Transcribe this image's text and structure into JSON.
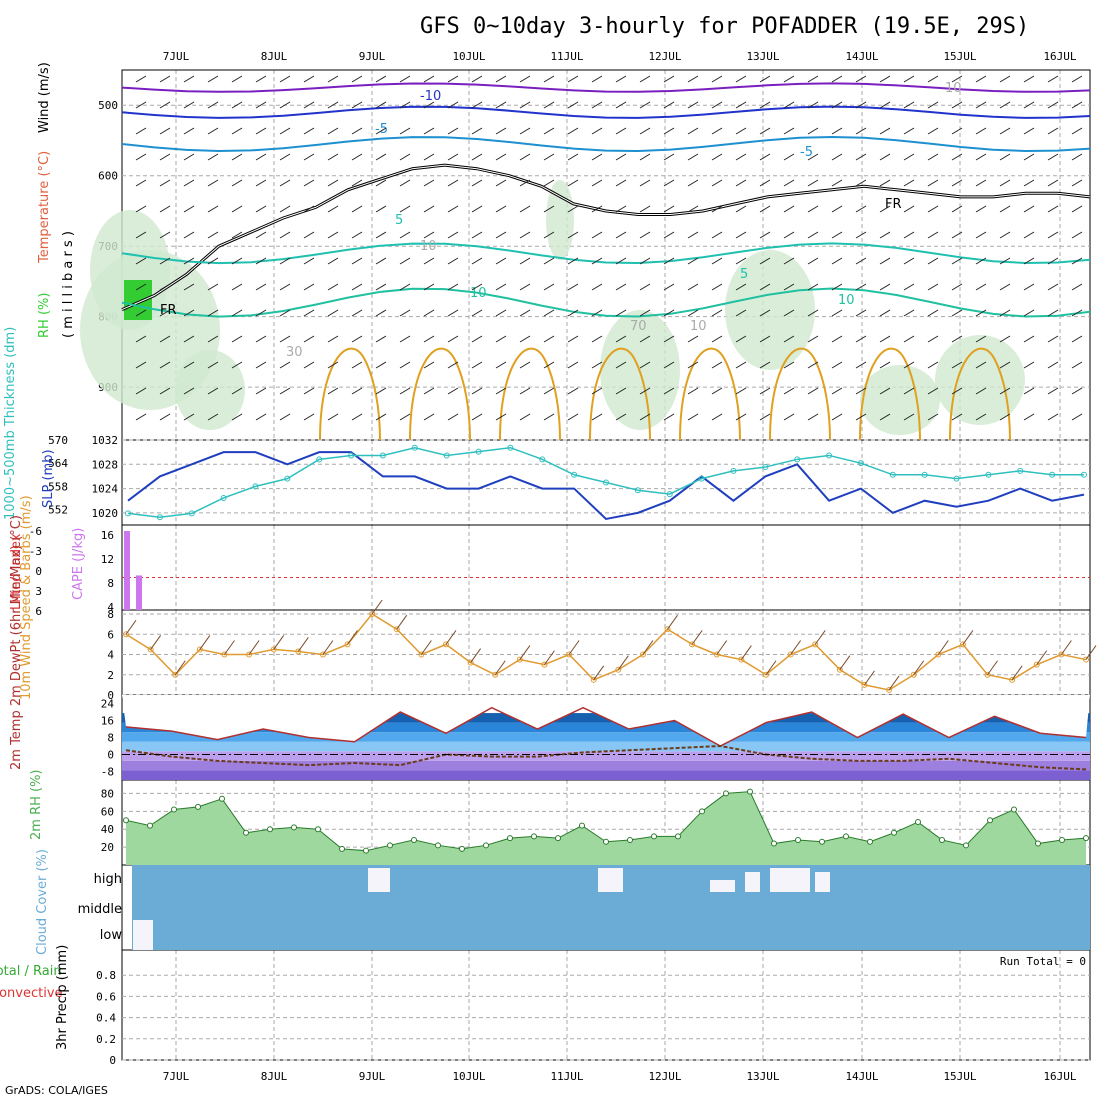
{
  "title": "GFS 0~10day 3-hourly for POFADDER (19.5E, 29S)",
  "footer": "GrADS: COLA/IGES",
  "run_total": "Run Total = 0",
  "colors": {
    "temperature": "#e06040",
    "wind": "#000000",
    "rh_green": "#33cc33",
    "slp": "#1f3fbf",
    "thickness": "#2fbfbf",
    "cape": "#cc77ee",
    "lifted": "#dd3333",
    "wind10m": "#e09a30",
    "rh2m": "#4caf50",
    "cloud": "#6aacd6",
    "precip_total": "#33aa33",
    "precip_conv": "#dd3333"
  },
  "chart_data": [
    {
      "panel": "upper-air",
      "type": "contour",
      "x_ticks": [
        "7JUL",
        "8JUL",
        "9JUL",
        "10JUL",
        "11JUL",
        "12JUL",
        "13JUL",
        "14JUL",
        "15JUL",
        "16JUL"
      ],
      "ylabel_parts": [
        "Wind (m/s)",
        "Temperature (°C)",
        "RH (%)"
      ],
      "ylabel_prefix": "RH (%)",
      "ylabel_temp": "Temperature (°C)",
      "ylabel_wind": "Wind (m/s)",
      "ylabel_pressure": "( m i l l i b a r s )",
      "y_ticks": [
        500,
        600,
        700,
        800,
        900
      ],
      "ylim": [
        450,
        975
      ],
      "contour_labels": [
        "-10",
        "-5",
        "-5",
        "FR",
        "5",
        "5",
        "10",
        "10",
        "FR",
        "10",
        "30",
        "70",
        "10",
        "10"
      ],
      "freezing_level_mb": [
        790,
        770,
        740,
        700,
        680,
        660,
        645,
        620,
        605,
        590,
        585,
        590,
        600,
        615,
        640,
        650,
        655,
        655,
        650,
        640,
        630,
        625,
        620,
        615,
        620,
        625,
        630,
        630,
        625,
        625,
        630
      ]
    },
    {
      "panel": "slp-thickness",
      "type": "line",
      "ylabel_left": "1000~500mb Thickness (dm)",
      "ylabel_right": "SLP (mb)",
      "thickness_ticks": [
        552,
        558,
        564,
        570
      ],
      "slp_ticks": [
        1020,
        1024,
        1028,
        1032
      ],
      "series": [
        {
          "name": "SLP",
          "values": [
            1022,
            1026,
            1028,
            1030,
            1030,
            1028,
            1030,
            1030,
            1026,
            1026,
            1024,
            1024,
            1026,
            1024,
            1024,
            1019,
            1020,
            1022,
            1026,
            1022,
            1026,
            1028,
            1022,
            1024,
            1020,
            1022,
            1021,
            1022,
            1024,
            1022,
            1023
          ]
        },
        {
          "name": "Thickness",
          "values": [
            551,
            550,
            551,
            555,
            558,
            560,
            565,
            566,
            566,
            568,
            566,
            567,
            568,
            565,
            561,
            559,
            557,
            556,
            560,
            562,
            563,
            565,
            566,
            564,
            561,
            561,
            560,
            561,
            562,
            561,
            561
          ]
        }
      ]
    },
    {
      "panel": "cape-lifted",
      "type": "bar",
      "ylabel_left": "Lifted Index",
      "ylabel_right": "CAPE (J/kg)",
      "li_ticks": [
        "-6",
        "-3",
        "0",
        "3",
        "6"
      ],
      "cape_ticks": [
        "16",
        "12",
        "8",
        "4"
      ],
      "cape_values": [
        16,
        0,
        7
      ]
    },
    {
      "panel": "wind10m",
      "type": "line",
      "ylabel": "10m Wind Speed & Barbs (m/s)",
      "y_ticks": [
        0,
        2,
        4,
        6,
        8
      ],
      "ylim": [
        0,
        8
      ],
      "values": [
        6,
        4.5,
        2,
        4.5,
        4,
        4,
        4.5,
        4.3,
        4,
        5,
        8,
        6.5,
        4,
        5,
        3.2,
        2,
        3.5,
        3,
        4,
        1.5,
        2.5,
        4,
        6.5,
        5,
        4,
        3.5,
        2,
        4,
        5,
        2.5,
        1,
        0.5,
        2,
        4,
        5,
        2,
        1.5,
        3,
        4,
        3.5
      ]
    },
    {
      "panel": "temp-dewpoint",
      "type": "area",
      "ylabel": "2m Temp 2m DewPt (6hr Min/Max) (°C)",
      "y_ticks": [
        24,
        16,
        8,
        0,
        -8
      ],
      "ylim": [
        -12,
        28
      ],
      "temp": [
        13,
        11,
        7,
        12,
        8,
        6,
        20,
        10,
        22,
        12,
        22,
        12,
        16,
        4,
        15,
        20,
        8,
        19,
        8,
        18,
        10,
        8
      ],
      "dewpt": [
        2,
        -1,
        -3,
        -4,
        -5,
        -4,
        -5,
        0,
        -1,
        -1,
        1,
        2,
        3,
        4,
        0,
        -2,
        -3,
        -3,
        -2,
        -4,
        -6,
        -7
      ]
    },
    {
      "panel": "rh2m",
      "type": "area",
      "ylabel": "2m RH (%)",
      "y_ticks": [
        20,
        40,
        60,
        80
      ],
      "ylim": [
        0,
        95
      ],
      "values": [
        50,
        44,
        62,
        65,
        74,
        36,
        40,
        42,
        40,
        18,
        16,
        22,
        28,
        22,
        18,
        22,
        30,
        32,
        30,
        44,
        26,
        28,
        32,
        32,
        60,
        80,
        82,
        24,
        28,
        26,
        32,
        26,
        36,
        48,
        28,
        22,
        50,
        62,
        24,
        28,
        30
      ]
    },
    {
      "panel": "cloud",
      "type": "heatmap",
      "ylabel": "Cloud Cover (%)",
      "levels": [
        "high",
        "middle",
        "low"
      ]
    },
    {
      "panel": "precip",
      "type": "bar",
      "ylabel": "3hr Precip (mm)",
      "ylabel_left": "Total / Rain",
      "ylabel_conv": "Convective",
      "y_ticks": [
        "0.8",
        "0.6",
        "0.4",
        "0.2",
        "0"
      ],
      "ylim": [
        0,
        1
      ],
      "values": []
    }
  ]
}
